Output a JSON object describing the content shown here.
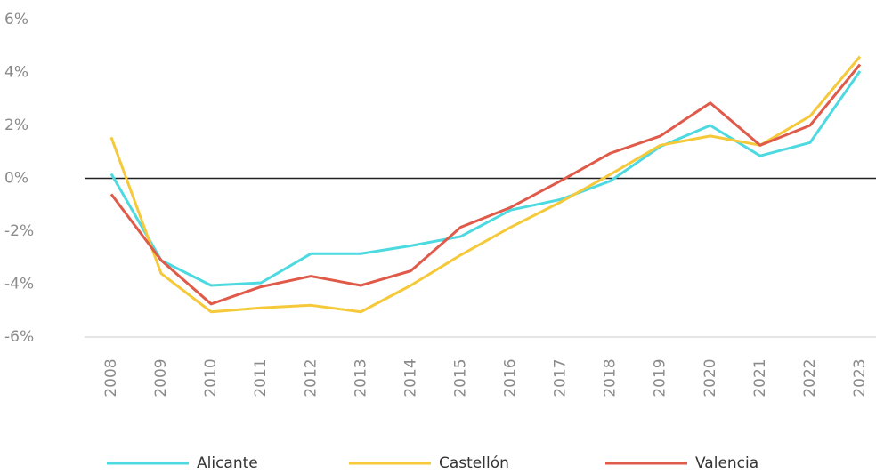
{
  "chart_data": {
    "type": "line",
    "categories": [
      "2008",
      "2009",
      "2010",
      "2011",
      "2012",
      "2013",
      "2014",
      "2015",
      "2016",
      "2017",
      "2018",
      "2019",
      "2020",
      "2021",
      "2022",
      "2023"
    ],
    "series": [
      {
        "name": "Alicante",
        "color": "#4dd9e0",
        "values": [
          0.17,
          -3.1,
          -4.05,
          -3.95,
          -2.85,
          -2.85,
          -2.55,
          -2.2,
          -1.2,
          -0.8,
          -0.1,
          1.2,
          2.0,
          0.85,
          1.35,
          4.05
        ]
      },
      {
        "name": "Castellón",
        "color": "#f5c93a",
        "values": [
          1.55,
          -3.6,
          -5.05,
          -4.9,
          -4.8,
          -5.05,
          -4.05,
          -2.9,
          -1.85,
          -0.9,
          0.15,
          1.25,
          1.6,
          1.25,
          2.35,
          4.6
        ]
      },
      {
        "name": "Valencia",
        "color": "#e05a4a",
        "values": [
          -0.6,
          -3.1,
          -4.75,
          -4.1,
          -3.7,
          -4.05,
          -3.5,
          -1.85,
          -1.1,
          -0.1,
          0.95,
          1.6,
          2.85,
          1.25,
          2.0,
          4.3
        ]
      }
    ],
    "ylim": [
      -6,
      6
    ],
    "yticks": [
      {
        "value": -6,
        "label": "-6%"
      },
      {
        "value": -4,
        "label": "-4%"
      },
      {
        "value": -2,
        "label": "-2%"
      },
      {
        "value": 0,
        "label": "0%"
      },
      {
        "value": 2,
        "label": "2%"
      },
      {
        "value": 4,
        "label": "4%"
      },
      {
        "value": 6,
        "label": "6%"
      }
    ],
    "legend": "bottom"
  }
}
